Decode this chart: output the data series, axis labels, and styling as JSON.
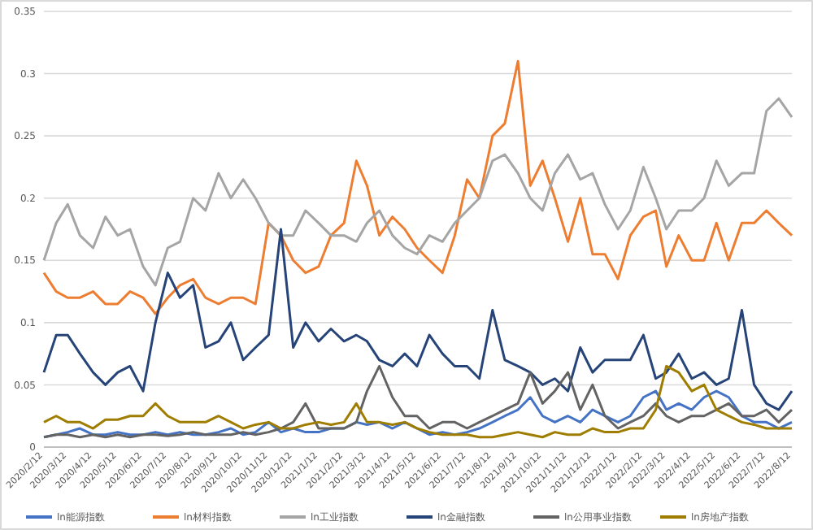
{
  "chart_data": {
    "type": "line",
    "grid": "y",
    "legend": "bottom",
    "x": [
      "2020-02-12",
      "2020-02-27",
      "2020-03-12",
      "2020-03-27",
      "2020-04-12",
      "2020-04-27",
      "2020-05-12",
      "2020-05-27",
      "2020-06-12",
      "2020-06-27",
      "2020-07-12",
      "2020-07-27",
      "2020-08-12",
      "2020-08-27",
      "2020-09-12",
      "2020-09-27",
      "2020-10-12",
      "2020-10-27",
      "2020-11-12",
      "2020-11-27",
      "2020-12-12",
      "2020-12-27",
      "2021-01-12",
      "2021-01-27",
      "2021-02-12",
      "2021-02-27",
      "2021-03-12",
      "2021-03-27",
      "2021-04-12",
      "2021-04-27",
      "2021-05-12",
      "2021-05-27",
      "2021-06-12",
      "2021-06-27",
      "2021-07-12",
      "2021-07-27",
      "2021-08-12",
      "2021-08-27",
      "2021-09-12",
      "2021-09-27",
      "2021-10-12",
      "2021-10-27",
      "2021-11-12",
      "2021-11-27",
      "2021-12-12",
      "2021-12-27",
      "2022-01-12",
      "2022-01-27",
      "2022-02-12",
      "2022-02-27",
      "2022-03-12",
      "2022-03-27",
      "2022-04-12",
      "2022-04-27",
      "2022-05-12",
      "2022-05-27",
      "2022-06-12",
      "2022-06-27",
      "2022-07-12",
      "2022-07-27",
      "2022-08-12"
    ],
    "xlim": [
      "2020-02-12",
      "2022-08-12"
    ],
    "xticks": [
      {
        "value": "2020-02-12",
        "label": "2020/2/12"
      },
      {
        "value": "2020-03-12",
        "label": "2020/3/12"
      },
      {
        "value": "2020-04-12",
        "label": "2020/4/12"
      },
      {
        "value": "2020-05-12",
        "label": "2020/5/12"
      },
      {
        "value": "2020-06-12",
        "label": "2020/6/12"
      },
      {
        "value": "2020-07-12",
        "label": "2020/7/12"
      },
      {
        "value": "2020-08-12",
        "label": "2020/8/12"
      },
      {
        "value": "2020-09-12",
        "label": "2020/9/12"
      },
      {
        "value": "2020-10-12",
        "label": "2020/10/12"
      },
      {
        "value": "2020-11-12",
        "label": "2020/11/12"
      },
      {
        "value": "2020-12-12",
        "label": "2020/12/12"
      },
      {
        "value": "2021-01-12",
        "label": "2021/1/12"
      },
      {
        "value": "2021-02-12",
        "label": "2021/2/12"
      },
      {
        "value": "2021-03-12",
        "label": "2021/3/12"
      },
      {
        "value": "2021-04-12",
        "label": "2021/4/12"
      },
      {
        "value": "2021-05-12",
        "label": "2021/5/12"
      },
      {
        "value": "2021-06-12",
        "label": "2021/6/12"
      },
      {
        "value": "2021-07-12",
        "label": "2021/7/12"
      },
      {
        "value": "2021-08-12",
        "label": "2021/8/12"
      },
      {
        "value": "2021-09-12",
        "label": "2021/9/12"
      },
      {
        "value": "2021-10-12",
        "label": "2021/10/12"
      },
      {
        "value": "2021-11-12",
        "label": "2021/11/12"
      },
      {
        "value": "2021-12-12",
        "label": "2021/12/12"
      },
      {
        "value": "2022-01-12",
        "label": "2022/1/12"
      },
      {
        "value": "2022-02-12",
        "label": "2022/2/12"
      },
      {
        "value": "2022-03-12",
        "label": "2022/3/12"
      },
      {
        "value": "2022-04-12",
        "label": "2022/4/12"
      },
      {
        "value": "2022-05-12",
        "label": "2022/5/12"
      },
      {
        "value": "2022-06-12",
        "label": "2022/6/12"
      },
      {
        "value": "2022-07-12",
        "label": "2022/7/12"
      },
      {
        "value": "2022-08-12",
        "label": "2022/8/12"
      }
    ],
    "ylim": [
      0,
      0.35
    ],
    "yticks": [
      0,
      0.05,
      0.1,
      0.15,
      0.2,
      0.25,
      0.3,
      0.35
    ],
    "series": [
      {
        "name": "ln能源指数",
        "color": "#4472c4",
        "values": [
          0.008,
          0.01,
          0.012,
          0.015,
          0.01,
          0.01,
          0.012,
          0.01,
          0.01,
          0.012,
          0.01,
          0.012,
          0.01,
          0.01,
          0.012,
          0.015,
          0.01,
          0.012,
          0.02,
          0.012,
          0.015,
          0.012,
          0.012,
          0.015,
          0.015,
          0.02,
          0.018,
          0.02,
          0.015,
          0.02,
          0.015,
          0.01,
          0.012,
          0.01,
          0.012,
          0.015,
          0.02,
          0.025,
          0.03,
          0.04,
          0.025,
          0.02,
          0.025,
          0.02,
          0.03,
          0.025,
          0.02,
          0.025,
          0.04,
          0.045,
          0.03,
          0.035,
          0.03,
          0.04,
          0.045,
          0.04,
          0.025,
          0.02,
          0.02,
          0.015,
          0.02
        ]
      },
      {
        "name": "ln材料指数",
        "color": "#ed7d31",
        "values": [
          0.14,
          0.125,
          0.12,
          0.12,
          0.125,
          0.115,
          0.115,
          0.125,
          0.12,
          0.107,
          0.12,
          0.13,
          0.135,
          0.12,
          0.115,
          0.12,
          0.12,
          0.115,
          0.18,
          0.17,
          0.15,
          0.14,
          0.145,
          0.17,
          0.18,
          0.23,
          0.21,
          0.17,
          0.185,
          0.175,
          0.16,
          0.15,
          0.14,
          0.17,
          0.215,
          0.2,
          0.25,
          0.26,
          0.31,
          0.21,
          0.23,
          0.2,
          0.165,
          0.2,
          0.155,
          0.155,
          0.135,
          0.17,
          0.185,
          0.19,
          0.145,
          0.17,
          0.15,
          0.15,
          0.18,
          0.15,
          0.18,
          0.18,
          0.19,
          0.18,
          0.17
        ]
      },
      {
        "name": "ln工业指数",
        "color": "#a5a5a5",
        "values": [
          0.15,
          0.18,
          0.195,
          0.17,
          0.16,
          0.185,
          0.17,
          0.175,
          0.145,
          0.13,
          0.16,
          0.165,
          0.2,
          0.19,
          0.22,
          0.2,
          0.215,
          0.2,
          0.18,
          0.17,
          0.17,
          0.19,
          0.18,
          0.17,
          0.17,
          0.165,
          0.18,
          0.19,
          0.17,
          0.16,
          0.155,
          0.17,
          0.165,
          0.18,
          0.19,
          0.2,
          0.23,
          0.235,
          0.22,
          0.2,
          0.19,
          0.22,
          0.235,
          0.215,
          0.22,
          0.195,
          0.175,
          0.19,
          0.225,
          0.2,
          0.175,
          0.19,
          0.19,
          0.2,
          0.23,
          0.21,
          0.22,
          0.22,
          0.27,
          0.28,
          0.265
        ]
      },
      {
        "name": "ln金融指数",
        "color": "#264478",
        "values": [
          0.06,
          0.09,
          0.09,
          0.075,
          0.06,
          0.05,
          0.06,
          0.065,
          0.045,
          0.1,
          0.14,
          0.12,
          0.13,
          0.08,
          0.085,
          0.1,
          0.07,
          0.08,
          0.09,
          0.175,
          0.08,
          0.1,
          0.085,
          0.095,
          0.085,
          0.09,
          0.085,
          0.07,
          0.065,
          0.075,
          0.065,
          0.09,
          0.075,
          0.065,
          0.065,
          0.055,
          0.11,
          0.07,
          0.065,
          0.06,
          0.05,
          0.055,
          0.045,
          0.08,
          0.06,
          0.07,
          0.07,
          0.07,
          0.09,
          0.055,
          0.06,
          0.075,
          0.055,
          0.06,
          0.05,
          0.055,
          0.11,
          0.05,
          0.035,
          0.03,
          0.045
        ]
      },
      {
        "name": "ln公用事业指数",
        "color": "#636363",
        "values": [
          0.008,
          0.01,
          0.01,
          0.008,
          0.01,
          0.008,
          0.01,
          0.008,
          0.01,
          0.01,
          0.009,
          0.01,
          0.012,
          0.01,
          0.01,
          0.01,
          0.012,
          0.01,
          0.012,
          0.015,
          0.02,
          0.035,
          0.015,
          0.015,
          0.015,
          0.02,
          0.045,
          0.065,
          0.04,
          0.025,
          0.025,
          0.015,
          0.02,
          0.02,
          0.015,
          0.02,
          0.025,
          0.03,
          0.035,
          0.06,
          0.035,
          0.045,
          0.06,
          0.03,
          0.05,
          0.025,
          0.015,
          0.02,
          0.025,
          0.035,
          0.025,
          0.02,
          0.025,
          0.025,
          0.03,
          0.035,
          0.025,
          0.025,
          0.03,
          0.02,
          0.03
        ]
      },
      {
        "name": "ln房地产指数",
        "color": "#9e7d00",
        "values": [
          0.02,
          0.025,
          0.02,
          0.02,
          0.015,
          0.022,
          0.022,
          0.025,
          0.025,
          0.035,
          0.025,
          0.02,
          0.02,
          0.02,
          0.025,
          0.02,
          0.015,
          0.018,
          0.02,
          0.015,
          0.015,
          0.018,
          0.02,
          0.018,
          0.02,
          0.035,
          0.02,
          0.02,
          0.018,
          0.02,
          0.015,
          0.012,
          0.01,
          0.01,
          0.01,
          0.008,
          0.008,
          0.01,
          0.012,
          0.01,
          0.008,
          0.012,
          0.01,
          0.01,
          0.015,
          0.012,
          0.012,
          0.015,
          0.015,
          0.03,
          0.065,
          0.06,
          0.045,
          0.05,
          0.03,
          0.025,
          0.02,
          0.018,
          0.015,
          0.015,
          0.015
        ]
      }
    ]
  }
}
